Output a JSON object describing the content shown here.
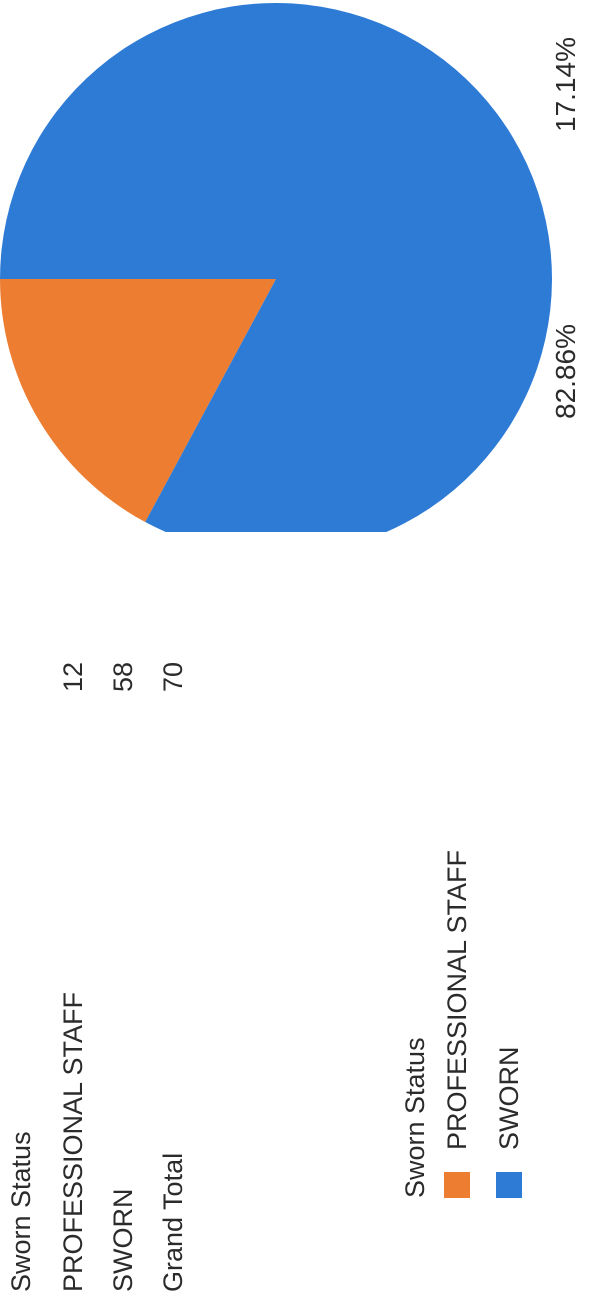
{
  "table": {
    "header": "Sworn Status",
    "rows": [
      {
        "label": "PROFESSIONAL STAFF",
        "value": "12"
      },
      {
        "label": "SWORN",
        "value": "58"
      },
      {
        "label": "Grand Total",
        "value": "70"
      }
    ]
  },
  "legend": {
    "title": "Sworn Status",
    "items": [
      {
        "label": "PROFESSIONAL STAFF",
        "color": "#ED7D31"
      },
      {
        "label": "SWORN",
        "color": "#2E7BD6"
      }
    ]
  },
  "chart_data": {
    "type": "pie",
    "categories": [
      "PROFESSIONAL STAFF",
      "SWORN"
    ],
    "values": [
      12,
      58
    ],
    "colors": [
      "#ED7D31",
      "#2E7BD6"
    ],
    "data_labels": [
      "17.14%",
      "82.86%"
    ]
  }
}
